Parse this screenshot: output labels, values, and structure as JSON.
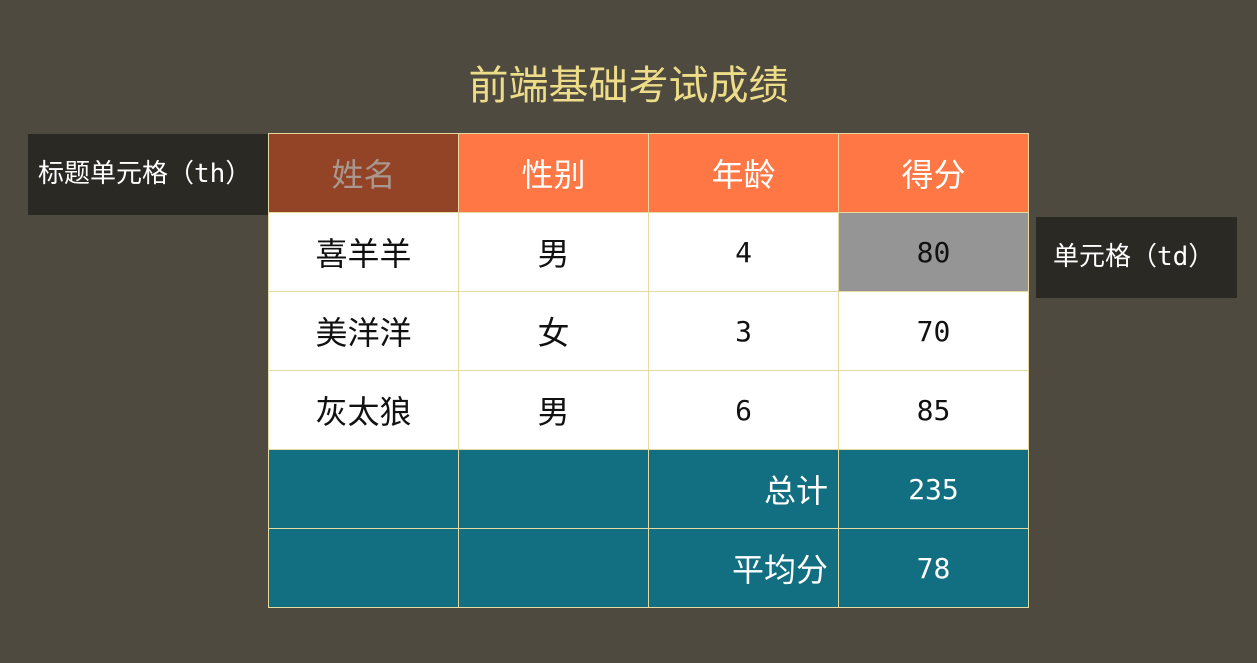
{
  "title": "前端基础考试成绩",
  "table": {
    "headers": [
      "姓名",
      "性别",
      "年龄",
      "得分"
    ],
    "rows": [
      {
        "name": "喜羊羊",
        "gender": "男",
        "age": "4",
        "score": "80"
      },
      {
        "name": "美洋洋",
        "gender": "女",
        "age": "3",
        "score": "70"
      },
      {
        "name": "灰太狼",
        "gender": "男",
        "age": "6",
        "score": "85"
      }
    ],
    "footer": [
      {
        "label": "总计",
        "value": "235"
      },
      {
        "label": "平均分",
        "value": "78"
      }
    ]
  },
  "callouts": {
    "th_text": "标题单元格",
    "th_tag": "（th）",
    "td_text": "单元格",
    "td_tag": "（td）"
  },
  "colors": {
    "background": "#4e4a40",
    "title": "#eedd88",
    "header": "#ff7744",
    "header_active": "#934426",
    "footer": "#126f82",
    "highlight_cell": "#959595",
    "callout": "#2a2924",
    "border": "#e6d9a0"
  }
}
